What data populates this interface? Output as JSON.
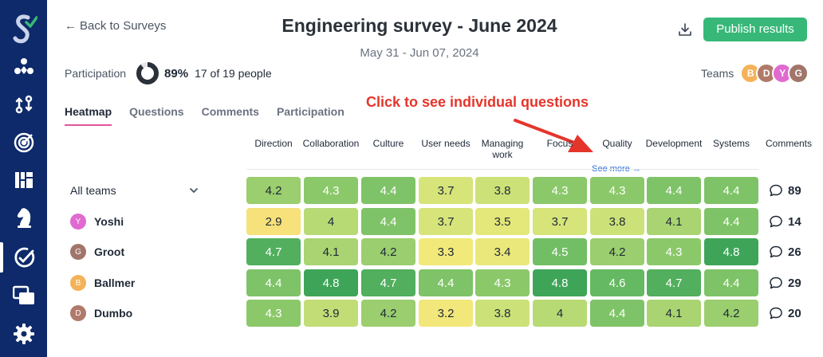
{
  "sidebar": {
    "icons": [
      "logo-icon",
      "integrations-icon",
      "workflows-icon",
      "radar-icon",
      "dashboards-icon",
      "chess-knight-icon",
      "surveys-icon",
      "messages-icon",
      "settings-icon"
    ],
    "active": "surveys-icon",
    "colors": {
      "bg": "#0e2a6b",
      "accent": "#37b878"
    }
  },
  "header": {
    "back_label": "Back to Surveys",
    "title": "Engineering survey - June 2024",
    "date_range": "May 31 - Jun 07, 2024",
    "publish_label": "Publish results"
  },
  "participation": {
    "label": "Participation",
    "percent": "89%",
    "percent_value": 0.89,
    "count": "17 of 19 people"
  },
  "teams": {
    "label": "Teams",
    "avatars": [
      {
        "initial": "B",
        "color": "#f4b259"
      },
      {
        "initial": "D",
        "color": "#b07a6a"
      },
      {
        "initial": "Y",
        "color": "#e06ad0"
      },
      {
        "initial": "G",
        "color": "#a1756a"
      }
    ]
  },
  "tabs": [
    "Heatmap",
    "Questions",
    "Comments",
    "Participation"
  ],
  "active_tab": "Heatmap",
  "annotation": "Click to see individual questions",
  "columns": [
    {
      "line1": "Direction",
      "line2": ""
    },
    {
      "line1": "Collaboration",
      "line2": ""
    },
    {
      "line1": "Culture",
      "line2": ""
    },
    {
      "line1": "User needs",
      "line2": ""
    },
    {
      "line1": "Managing",
      "line2": "work"
    },
    {
      "line1": "Focus",
      "line2": ""
    },
    {
      "line1": "Quality",
      "line2": ""
    },
    {
      "line1": "Development",
      "line2": ""
    },
    {
      "line1": "Systems",
      "line2": ""
    }
  ],
  "comments_header": "Comments",
  "see_more": "See more →",
  "rows": [
    {
      "label": "All teams",
      "initial": "",
      "avatar_color": "",
      "values": [
        "4.2",
        "4.3",
        "4.4",
        "3.7",
        "3.8",
        "4.3",
        "4.3",
        "4.4",
        "4.4"
      ],
      "comments": "89"
    },
    {
      "label": "Yoshi",
      "initial": "Y",
      "avatar_color": "#e06ad0",
      "values": [
        "2.9",
        "4",
        "4.4",
        "3.7",
        "3.5",
        "3.7",
        "3.8",
        "4.1",
        "4.4"
      ],
      "comments": "14"
    },
    {
      "label": "Groot",
      "initial": "G",
      "avatar_color": "#a1756a",
      "values": [
        "4.7",
        "4.1",
        "4.2",
        "3.3",
        "3.4",
        "4.5",
        "4.2",
        "4.3",
        "4.8"
      ],
      "comments": "26"
    },
    {
      "label": "Ballmer",
      "initial": "B",
      "avatar_color": "#f4b259",
      "values": [
        "4.4",
        "4.8",
        "4.7",
        "4.4",
        "4.3",
        "4.8",
        "4.6",
        "4.7",
        "4.4"
      ],
      "comments": "29"
    },
    {
      "label": "Dumbo",
      "initial": "D",
      "avatar_color": "#b07a6a",
      "values": [
        "4.3",
        "3.9",
        "4.2",
        "3.2",
        "3.8",
        "4",
        "4.4",
        "4.1",
        "4.2"
      ],
      "comments": "20"
    }
  ]
}
